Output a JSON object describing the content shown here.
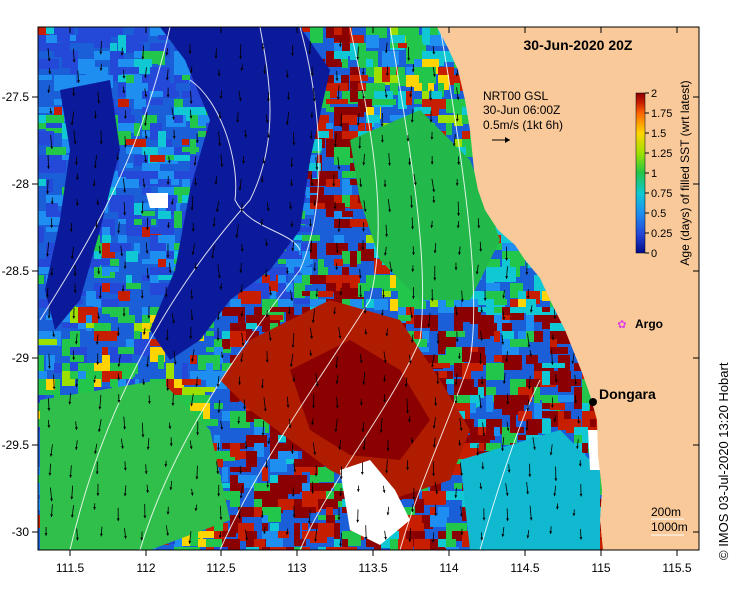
{
  "map": {
    "title": "30-Jun-2020 20Z",
    "x_ticks": [
      "111.5",
      "112",
      "112.5",
      "113",
      "113.5",
      "114",
      "114.5",
      "115",
      "115.5"
    ],
    "y_ticks": [
      "-27.5",
      "-28",
      "-28.5",
      "-29",
      "-29.5",
      "-30"
    ],
    "current_legend": {
      "line1": "NRT00 GSL",
      "line2": "30-Jun 06:00Z",
      "line3": "0.5m/s (1kt 6h)"
    },
    "colorbar": {
      "label": "Age (days) of filled SST (wrt latest)",
      "ticks": [
        "2",
        "1.75",
        "1.5",
        "1.25",
        "1",
        "0.75",
        "0.5",
        "0.25",
        "0"
      ],
      "colors": [
        "#8b0000",
        "#c81e00",
        "#ff6a00",
        "#ffd400",
        "#9be000",
        "#22c64a",
        "#10c8d4",
        "#1e8ff0",
        "#2448d8",
        "#000c8a"
      ]
    },
    "argo": {
      "label": "Argo",
      "color": "#e040e0"
    },
    "town": {
      "label": "Dongara"
    },
    "depth_labels": [
      "200m",
      "1000m"
    ],
    "credit": "© IMOS 03-Jul-2020 13:20 Hobart",
    "colors": {
      "land": "#f9c99a",
      "ocean_base": "#1a5fd8"
    }
  }
}
